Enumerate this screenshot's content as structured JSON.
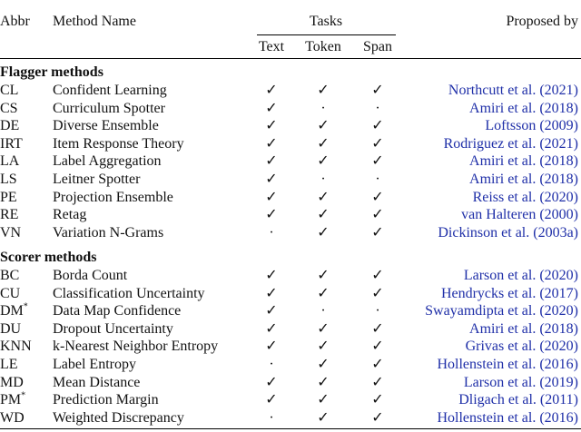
{
  "table": {
    "header": {
      "abbr": "Abbr",
      "name": "Method Name",
      "tasks": "Tasks",
      "text": "Text",
      "token": "Token",
      "span": "Span",
      "proposed": "Proposed by"
    },
    "sections": [
      {
        "title": "Flagger methods",
        "rows": [
          {
            "abbr": "CL",
            "name": "Confident Learning",
            "text": "✓",
            "token": "✓",
            "span": "✓",
            "proposed": "Northcutt et al. (2021)"
          },
          {
            "abbr": "CS",
            "name": "Curriculum Spotter",
            "text": "✓",
            "token": "·",
            "span": "·",
            "proposed": "Amiri et al. (2018)"
          },
          {
            "abbr": "DE",
            "name": "Diverse Ensemble",
            "text": "✓",
            "token": "✓",
            "span": "✓",
            "proposed": "Loftsson (2009)"
          },
          {
            "abbr": "IRT",
            "name": "Item Response Theory",
            "text": "✓",
            "token": "✓",
            "span": "✓",
            "proposed": "Rodriguez et al. (2021)"
          },
          {
            "abbr": "LA",
            "name": "Label Aggregation",
            "text": "✓",
            "token": "✓",
            "span": "✓",
            "proposed": "Amiri et al. (2018)"
          },
          {
            "abbr": "LS",
            "name": "Leitner Spotter",
            "text": "✓",
            "token": "·",
            "span": "·",
            "proposed": "Amiri et al. (2018)"
          },
          {
            "abbr": "PE",
            "name": "Projection Ensemble",
            "text": "✓",
            "token": "✓",
            "span": "✓",
            "proposed": "Reiss et al. (2020)"
          },
          {
            "abbr": "RE",
            "name": "Retag",
            "text": "✓",
            "token": "✓",
            "span": "✓",
            "proposed": "van Halteren (2000)"
          },
          {
            "abbr": "VN",
            "name": "Variation N-Grams",
            "text": "·",
            "token": "✓",
            "span": "✓",
            "proposed": "Dickinson et al. (2003a)"
          }
        ]
      },
      {
        "title": "Scorer methods",
        "rows": [
          {
            "abbr": "BC",
            "name": "Borda Count",
            "text": "✓",
            "token": "✓",
            "span": "✓",
            "proposed": "Larson et al. (2020)"
          },
          {
            "abbr": "CU",
            "name": "Classification Uncertainty",
            "text": "✓",
            "token": "✓",
            "span": "✓",
            "proposed": "Hendrycks et al. (2017)"
          },
          {
            "abbr": "DM",
            "mark": "*",
            "name": "Data Map Confidence",
            "text": "✓",
            "token": "·",
            "span": "·",
            "proposed": "Swayamdipta et al. (2020)"
          },
          {
            "abbr": "DU",
            "name": "Dropout Uncertainty",
            "text": "✓",
            "token": "✓",
            "span": "✓",
            "proposed": "Amiri et al. (2018)"
          },
          {
            "abbr": "KNN",
            "name": "k-Nearest Neighbor Entropy",
            "text": "✓",
            "token": "✓",
            "span": "✓",
            "proposed": "Grivas et al. (2020)"
          },
          {
            "abbr": "LE",
            "name": "Label Entropy",
            "text": "·",
            "token": "✓",
            "span": "✓",
            "proposed": "Hollenstein et al. (2016)"
          },
          {
            "abbr": "MD",
            "name": "Mean Distance",
            "text": "✓",
            "token": "✓",
            "span": "✓",
            "proposed": "Larson et al. (2019)"
          },
          {
            "abbr": "PM",
            "mark": "*",
            "name": "Prediction Margin",
            "text": "✓",
            "token": "✓",
            "span": "✓",
            "proposed": "Dligach et al. (2011)"
          },
          {
            "abbr": "WD",
            "name": "Weighted Discrepancy",
            "text": "·",
            "token": "✓",
            "span": "✓",
            "proposed": "Hollenstein et al. (2016)"
          }
        ]
      }
    ]
  }
}
